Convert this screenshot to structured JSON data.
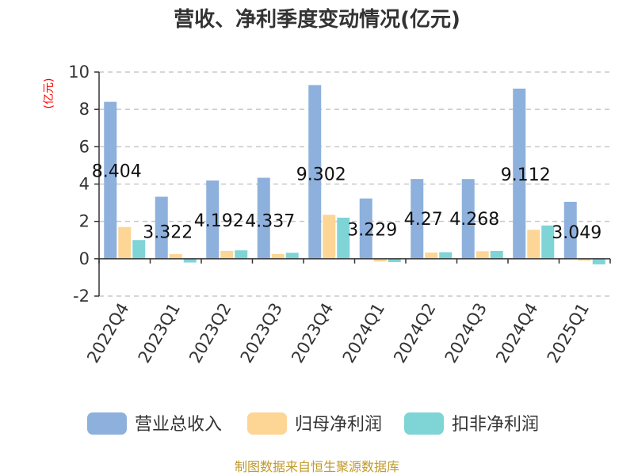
{
  "chart_data": {
    "type": "bar",
    "title": "营收、净利季度变动情况(亿元)",
    "ylabel": "(亿元)",
    "xlabel": "",
    "ylim": [
      -2,
      10
    ],
    "yticks": [
      -2,
      0,
      2,
      4,
      6,
      8,
      10
    ],
    "categories": [
      "2022Q4",
      "2023Q1",
      "2023Q2",
      "2023Q3",
      "2023Q4",
      "2024Q1",
      "2024Q2",
      "2024Q3",
      "2024Q4",
      "2025Q1"
    ],
    "series": [
      {
        "name": "营业总收入",
        "color": "#8eb0dc",
        "values": [
          8.404,
          3.322,
          4.192,
          4.337,
          9.302,
          3.229,
          4.27,
          4.268,
          9.112,
          3.049
        ]
      },
      {
        "name": "归母净利润",
        "color": "#fdd595",
        "values": [
          1.7,
          0.25,
          0.42,
          0.25,
          2.35,
          -0.15,
          0.33,
          0.4,
          1.55,
          -0.1
        ]
      },
      {
        "name": "扣非净利润",
        "color": "#7fd4d6",
        "values": [
          1.0,
          -0.2,
          0.45,
          0.32,
          2.2,
          -0.18,
          0.35,
          0.42,
          1.78,
          -0.3
        ]
      }
    ],
    "data_labels": [
      "8.404",
      "3.322",
      "4.192",
      "4.337",
      "9.302",
      "3.229",
      "4.27",
      "4.268",
      "9.112",
      "3.049"
    ],
    "grid": true,
    "legend_position": "bottom"
  },
  "footer": {
    "source": "制图数据来自恒生聚源数据库"
  }
}
